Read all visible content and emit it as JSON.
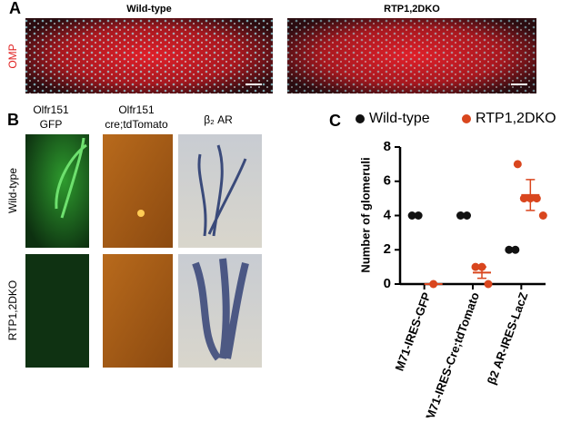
{
  "panel_a": {
    "label": "A",
    "titles": [
      "Wild-type",
      "RTP1,2DKO"
    ],
    "stain": "OMP"
  },
  "panel_b": {
    "label": "B",
    "columns": [
      [
        "Olfr151",
        "GFP"
      ],
      [
        "Olfr151",
        "cre;tdTomato"
      ],
      [
        "β₂ AR"
      ]
    ],
    "rows": [
      "Wild-type",
      "RTP1,2DKO"
    ]
  },
  "chart_data": {
    "type": "dot",
    "label": "C",
    "ylabel": "Number of glomeruli",
    "categories": [
      "M71-IRES-GFP",
      "M71-IRES-Cre;tdTomato",
      "β2 AR-IRES-LacZ"
    ],
    "ylim": [
      0,
      8
    ],
    "yticks": [
      0,
      2,
      4,
      6,
      8
    ],
    "series": [
      {
        "name": "Wild-type",
        "color": "#111111",
        "values": [
          [
            4,
            4
          ],
          [
            4,
            4
          ],
          [
            2,
            2
          ]
        ]
      },
      {
        "name": "RTP1,2DKO",
        "color": "#d9461e",
        "values": [
          [
            0
          ],
          [
            1,
            1,
            0
          ],
          [
            7,
            5,
            5,
            5,
            4
          ]
        ],
        "means": [
          0,
          0.67,
          5.2
        ],
        "errors": [
          0,
          0.33,
          0.9
        ]
      }
    ]
  }
}
